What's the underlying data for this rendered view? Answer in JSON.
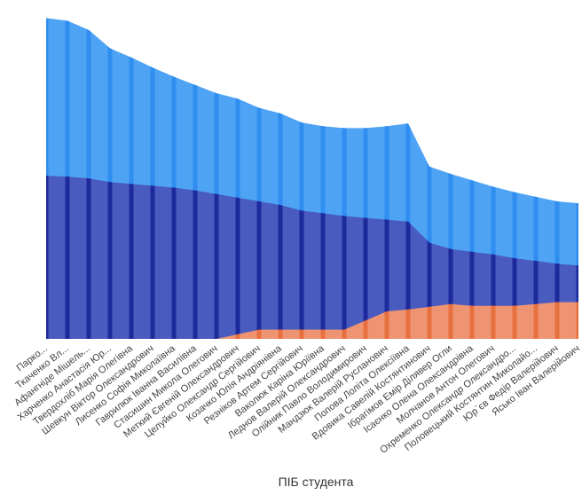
{
  "chart_data": {
    "type": "area",
    "xlabel": "ПІБ студента",
    "ylabel": "",
    "title": "",
    "legend": "none",
    "grid": false,
    "ylim": [
      0,
      360
    ],
    "tick_labels": [
      "Парко...",
      "Ткаченко Вл...",
      "Афангніде Мішель...",
      "Харченко Анастасія Юр...",
      "Твердохліб Марія Олегівна",
      "Шевкун Віктор Олександрович",
      "Лисенко Софія Миколаївна",
      "Гаврилюк Іванна Василівна",
      "Стасишин Микола Олегович",
      "Меткий Євгеній Олександрович",
      "Целуйко Олександр Сергійович",
      "Козачко Юлія Андріянівна",
      "Резніков Артем Сергійович",
      "Ваколюк Каріна Юріївна",
      "Леднов Валерій Олександрович",
      "Олійник Павло Володимирович",
      "Мандзюк Валерій Русланович",
      "Попова Лоліта Олексіївна",
      "Вдовика Савелій Костянтинович",
      "Ібрагімов Емір Ділявер Огли",
      "Ісаєнко Олена Олександрівна",
      "Молчанов Антон Олегович",
      "Охременко Олександр Олександро...",
      "Половецький Костянтин Миколайо...",
      "Юр`єв Федір Валерійович",
      "Ясько Іван Валерійович"
    ],
    "series": [
      {
        "values": [
          350,
          347,
          337,
          317,
          307,
          296,
          286,
          277,
          268,
          262,
          252,
          246,
          236,
          232,
          230,
          230,
          232,
          235,
          188,
          180,
          173,
          166,
          160,
          155,
          150,
          148
        ]
      },
      {
        "values": [
          178,
          177,
          175,
          171,
          169,
          167,
          165,
          162,
          158,
          154,
          150,
          146,
          140,
          137,
          134,
          132,
          130,
          128,
          105,
          98,
          95,
          92,
          88,
          85,
          82,
          80
        ]
      },
      {
        "values": [
          0,
          0,
          0,
          0,
          0,
          0,
          0,
          0,
          0,
          5,
          10,
          10,
          10,
          10,
          10,
          20,
          30,
          32,
          35,
          38,
          36,
          36,
          36,
          38,
          40,
          40
        ]
      }
    ],
    "colors": {
      "light_blue": "#4ea3f5",
      "light_blue_stripe": "#2f8ef0",
      "dark_blue": "#4a5bbf",
      "dark_blue_stripe": "#1c2a9c",
      "orange": "#ee9472",
      "orange_stripe": "#e86f3e"
    }
  }
}
